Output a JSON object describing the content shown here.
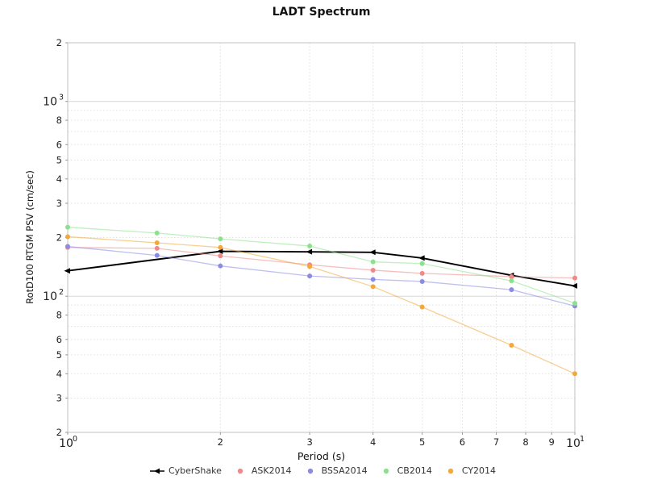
{
  "title": "LADT Spectrum",
  "axes": {
    "x_label": "Period (s)",
    "y_label": "RotD100 RTGM PSV (cm/sec)"
  },
  "chart_data": {
    "type": "line",
    "title": "LADT Spectrum",
    "xlabel": "Period (s)",
    "ylabel": "RotD100 RTGM PSV (cm/sec)",
    "x_scale": "log",
    "y_scale": "log",
    "xlim": [
      1,
      10
    ],
    "ylim": [
      20,
      2000
    ],
    "grid": true,
    "legend_position": "bottom-center",
    "x_ticks": [
      {
        "v": 1,
        "label": "10",
        "sup": "0"
      },
      {
        "v": 2,
        "label": "2"
      },
      {
        "v": 3,
        "label": "3"
      },
      {
        "v": 4,
        "label": "4"
      },
      {
        "v": 5,
        "label": "5"
      },
      {
        "v": 6,
        "label": "6"
      },
      {
        "v": 7,
        "label": "7"
      },
      {
        "v": 8,
        "label": "8"
      },
      {
        "v": 9,
        "label": "9"
      },
      {
        "v": 10,
        "label": "10",
        "sup": "1"
      }
    ],
    "y_ticks": [
      {
        "v": 2000,
        "label": "2"
      },
      {
        "v": 1000,
        "label": "10",
        "sup": "3"
      },
      {
        "v": 800,
        "label": "8"
      },
      {
        "v": 600,
        "label": "6"
      },
      {
        "v": 500,
        "label": "5"
      },
      {
        "v": 400,
        "label": "4"
      },
      {
        "v": 300,
        "label": "3"
      },
      {
        "v": 200,
        "label": "2"
      },
      {
        "v": 100,
        "label": "10",
        "sup": "2"
      },
      {
        "v": 80,
        "label": "8"
      },
      {
        "v": 60,
        "label": "6"
      },
      {
        "v": 50,
        "label": "5"
      },
      {
        "v": 40,
        "label": "4"
      },
      {
        "v": 30,
        "label": "3"
      },
      {
        "v": 20,
        "label": "2"
      }
    ],
    "y_grid_unlabeled": [
      900,
      700,
      90,
      70
    ],
    "series": [
      {
        "name": "CyberShake",
        "color": "#000000",
        "marker": "triangle-left",
        "line_width": 1.9,
        "line_opacity": 1,
        "x": [
          1,
          2,
          3,
          4,
          5,
          7.5,
          10
        ],
        "y": [
          135,
          170,
          169,
          168,
          157,
          128,
          113
        ]
      },
      {
        "name": "ASK2014",
        "color": "#f08989",
        "marker": "circle",
        "line_width": 1.3,
        "line_opacity": 0.55,
        "x": [
          1,
          1.5,
          2,
          3,
          4,
          5,
          7.5,
          10
        ],
        "y": [
          178,
          176,
          161,
          145,
          136,
          131,
          126,
          124
        ]
      },
      {
        "name": "BSSA2014",
        "color": "#8b8be4",
        "marker": "circle",
        "line_width": 1.3,
        "line_opacity": 0.55,
        "x": [
          1,
          1.5,
          2,
          3,
          4,
          5,
          7.5,
          10
        ],
        "y": [
          180,
          162,
          143,
          127,
          122,
          119,
          108,
          89
        ]
      },
      {
        "name": "CB2014",
        "color": "#8ce28c",
        "marker": "circle",
        "line_width": 1.3,
        "line_opacity": 0.55,
        "x": [
          1,
          1.5,
          2,
          3,
          4,
          5,
          7.5,
          10
        ],
        "y": [
          226,
          211,
          197,
          181,
          150,
          147,
          120,
          92
        ]
      },
      {
        "name": "CY2014",
        "color": "#f2a83a",
        "marker": "circle",
        "line_width": 1.3,
        "line_opacity": 0.55,
        "x": [
          1,
          1.5,
          2,
          3,
          4,
          5,
          7.5,
          10
        ],
        "y": [
          202,
          188,
          178,
          142,
          112,
          88,
          56,
          40
        ]
      }
    ],
    "style": {
      "grid_minor_color": "#e0e0e0",
      "grid_major_color": "#d8d8d8",
      "box_color": "#c0c0c0",
      "tick_label_color": "#222"
    }
  }
}
